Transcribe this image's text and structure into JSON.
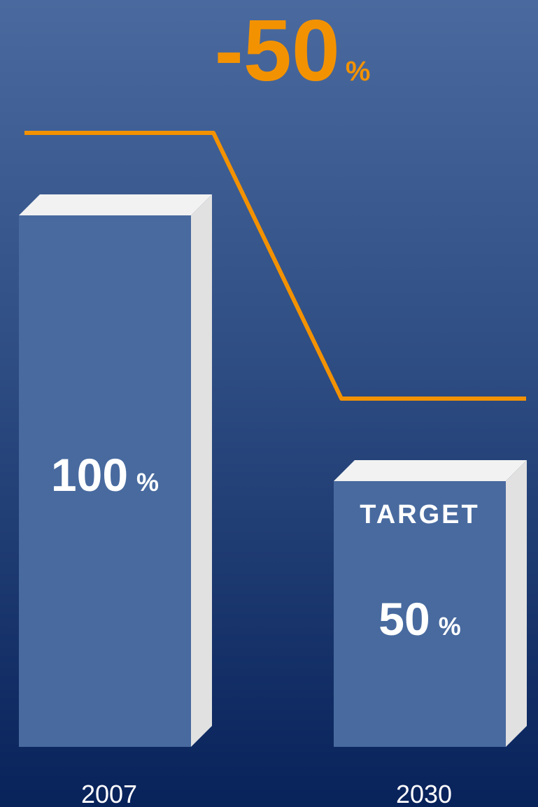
{
  "chart_data": {
    "type": "bar",
    "title": "-50",
    "title_unit": "%",
    "categories": [
      "2007",
      "2030"
    ],
    "values": [
      100,
      50
    ],
    "value_unit": "%",
    "annotations": [
      null,
      "TARGET"
    ],
    "color": "#486a9f",
    "line_color": "#f39200"
  }
}
